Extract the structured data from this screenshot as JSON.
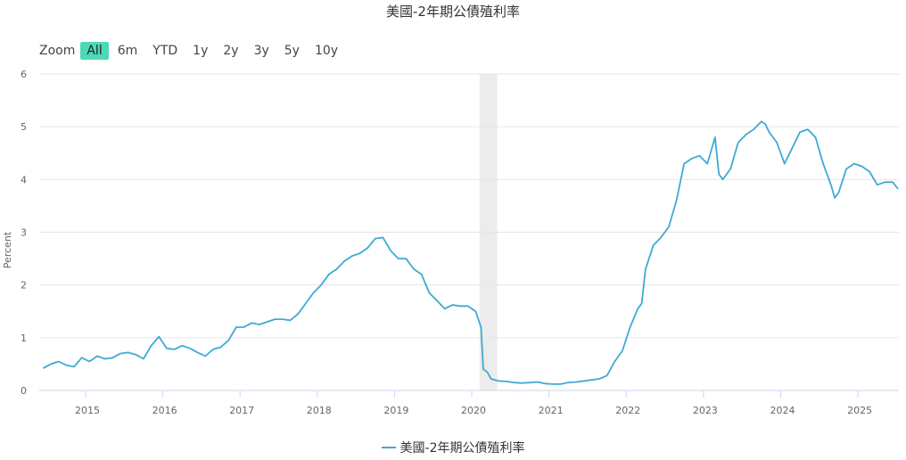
{
  "chart_data": {
    "type": "line",
    "title": "美國-2年期公債殖利率",
    "ylabel": "Percent",
    "ylim": [
      0,
      6
    ],
    "y_ticks": [
      "0",
      "1",
      "2",
      "3",
      "4",
      "5",
      "6"
    ],
    "x_ticks": [
      "2015",
      "2016",
      "2017",
      "2018",
      "2019",
      "2020",
      "2021",
      "2022",
      "2023",
      "2024",
      "2025"
    ],
    "xlim": [
      2014.4,
      2025.53
    ],
    "grid": true,
    "legend_position": "bottom-center",
    "shaded_period": [
      2020.1,
      2020.33
    ],
    "series": [
      {
        "name": "美國-2年期公債殖利率",
        "color": "#3fa9d5",
        "x": [
          2014.45,
          2014.55,
          2014.65,
          2014.75,
          2014.85,
          2014.95,
          2015.05,
          2015.15,
          2015.25,
          2015.35,
          2015.45,
          2015.55,
          2015.65,
          2015.75,
          2015.85,
          2015.95,
          2016.05,
          2016.15,
          2016.25,
          2016.35,
          2016.45,
          2016.55,
          2016.65,
          2016.75,
          2016.85,
          2016.95,
          2017.05,
          2017.15,
          2017.25,
          2017.35,
          2017.45,
          2017.55,
          2017.65,
          2017.75,
          2017.85,
          2017.95,
          2018.05,
          2018.15,
          2018.25,
          2018.35,
          2018.45,
          2018.55,
          2018.65,
          2018.75,
          2018.85,
          2018.95,
          2019.05,
          2019.15,
          2019.25,
          2019.35,
          2019.45,
          2019.55,
          2019.65,
          2019.75,
          2019.85,
          2019.95,
          2020.05,
          2020.12,
          2020.15,
          2020.2,
          2020.25,
          2020.35,
          2020.45,
          2020.55,
          2020.65,
          2020.75,
          2020.85,
          2020.95,
          2021.05,
          2021.15,
          2021.25,
          2021.35,
          2021.45,
          2021.55,
          2021.65,
          2021.75,
          2021.85,
          2021.95,
          2022.05,
          2022.15,
          2022.2,
          2022.25,
          2022.35,
          2022.45,
          2022.55,
          2022.65,
          2022.75,
          2022.85,
          2022.95,
          2023.05,
          2023.15,
          2023.2,
          2023.25,
          2023.35,
          2023.45,
          2023.55,
          2023.65,
          2023.75,
          2023.8,
          2023.85,
          2023.95,
          2024.05,
          2024.15,
          2024.25,
          2024.35,
          2024.45,
          2024.55,
          2024.65,
          2024.7,
          2024.75,
          2024.85,
          2024.95,
          2025.05,
          2025.15,
          2025.25,
          2025.35,
          2025.45,
          2025.52
        ],
        "values": [
          0.42,
          0.5,
          0.55,
          0.48,
          0.45,
          0.62,
          0.55,
          0.65,
          0.6,
          0.62,
          0.7,
          0.72,
          0.68,
          0.6,
          0.85,
          1.02,
          0.8,
          0.78,
          0.85,
          0.8,
          0.72,
          0.65,
          0.78,
          0.82,
          0.95,
          1.2,
          1.2,
          1.28,
          1.25,
          1.3,
          1.35,
          1.35,
          1.33,
          1.45,
          1.65,
          1.85,
          2.0,
          2.2,
          2.3,
          2.45,
          2.55,
          2.6,
          2.7,
          2.88,
          2.9,
          2.65,
          2.5,
          2.5,
          2.3,
          2.2,
          1.85,
          1.7,
          1.55,
          1.62,
          1.6,
          1.6,
          1.5,
          1.2,
          0.4,
          0.35,
          0.22,
          0.18,
          0.17,
          0.15,
          0.14,
          0.15,
          0.16,
          0.13,
          0.12,
          0.12,
          0.15,
          0.16,
          0.18,
          0.2,
          0.22,
          0.28,
          0.55,
          0.75,
          1.2,
          1.55,
          1.65,
          2.3,
          2.75,
          2.9,
          3.1,
          3.6,
          4.3,
          4.4,
          4.45,
          4.3,
          4.8,
          4.1,
          4.0,
          4.2,
          4.7,
          4.85,
          4.95,
          5.1,
          5.05,
          4.9,
          4.7,
          4.3,
          4.6,
          4.9,
          4.95,
          4.8,
          4.3,
          3.9,
          3.65,
          3.75,
          4.2,
          4.3,
          4.25,
          4.15,
          3.9,
          3.95,
          3.95,
          3.82
        ]
      }
    ]
  },
  "toolbar": {
    "zoom_label": "Zoom",
    "buttons": [
      "All",
      "6m",
      "YTD",
      "1y",
      "2y",
      "3y",
      "5y",
      "10y"
    ],
    "active": "All"
  }
}
